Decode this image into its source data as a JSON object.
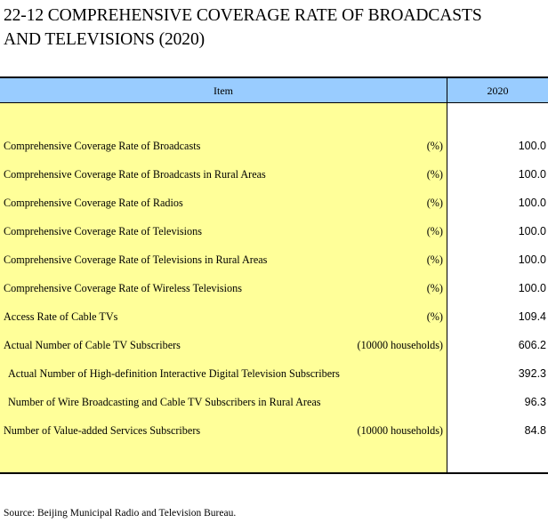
{
  "title": {
    "line1": "22-12  COMPREHENSIVE COVERAGE RATE OF BROADCASTS",
    "line2": "AND TELEVISIONS (2020)"
  },
  "table": {
    "header": {
      "item": "Item",
      "year": "2020"
    },
    "rows": [
      {
        "label": "Comprehensive Coverage Rate of Broadcasts",
        "unit": "(%)",
        "value": "100.0"
      },
      {
        "label": "Comprehensive Coverage Rate of Broadcasts in Rural Areas",
        "unit": "(%)",
        "value": "100.0"
      },
      {
        "label": "Comprehensive Coverage Rate of Radios",
        "unit": "(%)",
        "value": "100.0"
      },
      {
        "label": "Comprehensive Coverage Rate of Televisions",
        "unit": "(%)",
        "value": "100.0"
      },
      {
        "label": "Comprehensive Coverage Rate of Televisions in Rural Areas",
        "unit": "(%)",
        "value": "100.0"
      },
      {
        "label": "Comprehensive Coverage Rate of Wireless Televisions",
        "unit": "(%)",
        "value": "100.0"
      },
      {
        "label": "Access Rate of Cable TVs",
        "unit": "(%)",
        "value": "109.4"
      },
      {
        "label": "Actual Number of Cable TV Subscribers",
        "unit": "(10000 households)",
        "value": "606.2"
      },
      {
        "label": "Actual Number of High-definition Interactive Digital Television Subscribers",
        "unit": "",
        "value": "392.3"
      },
      {
        "label": "Number of Wire Broadcasting and Cable TV Subscribers in Rural Areas",
        "unit": "",
        "value": "96.3"
      },
      {
        "label": "Number of Value-added Services Subscribers",
        "unit": "(10000 households)",
        "value": "84.8"
      }
    ]
  },
  "source": "Source: Beijing Municipal Radio and Television Bureau.",
  "colors": {
    "header_bg": "#99ccff",
    "body_bg": "#ffff99"
  }
}
